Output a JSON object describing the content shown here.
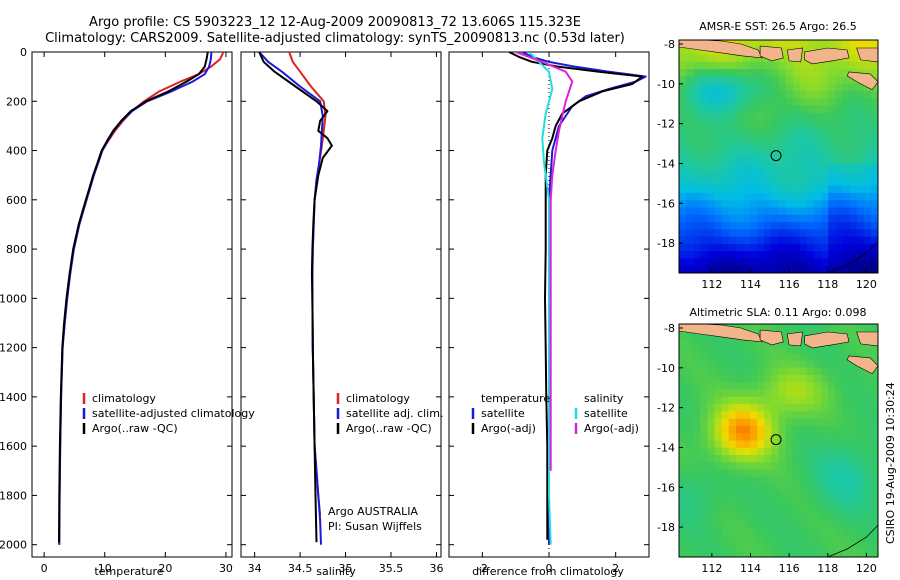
{
  "title": {
    "line1": "Argo profile: CS 5903223_12 12-Aug-2009 20090813_72 13.606S 115.323E",
    "line2": "Climatology: CARS2009. Satellite-adjusted climatology: synTS_20090813.nc (0.53d later)"
  },
  "colors": {
    "climatology": "#dd2222",
    "satellite": "#1a1ad8",
    "argo": "#000000",
    "sal_satellite": "#22dddd",
    "sal_argo": "#dd22dd",
    "land": "#f2b48a"
  },
  "watermark": "CSIRO 19-Aug-2009 10:30:24",
  "chart_data": [
    {
      "type": "line",
      "xlabel": "temperature",
      "ylabel": "",
      "xlim": [
        -2,
        31
      ],
      "ylim": [
        2050,
        0
      ],
      "xticks": [
        "0",
        "10",
        "20",
        "30"
      ],
      "yticks": [
        "0",
        "200",
        "400",
        "600",
        "800",
        "1000",
        "1200",
        "1400",
        "1600",
        "1800",
        "2000"
      ],
      "legend": [
        "climatology",
        "satellite-adjusted climatology",
        "Argo(..raw -QC)"
      ],
      "series": [
        {
          "name": "climatology",
          "color": "#dd2222",
          "x": [
            29.6,
            29,
            27.5,
            25.5,
            22.5,
            19,
            16.5,
            14.5,
            13,
            11.7,
            10.6,
            9.6,
            8.9,
            8.2,
            7.6,
            7,
            5.8,
            4.9,
            4.3,
            3.8,
            3.4,
            3.05,
            2.8,
            2.65,
            2.55,
            2.5
          ],
          "y": [
            0,
            30,
            60,
            90,
            120,
            160,
            200,
            240,
            280,
            320,
            360,
            400,
            450,
            500,
            550,
            600,
            700,
            800,
            900,
            1000,
            1100,
            1200,
            1400,
            1600,
            1800,
            2000
          ]
        },
        {
          "name": "satellite",
          "color": "#1a1ad8",
          "x": [
            27.6,
            27.5,
            27.2,
            26.5,
            24.5,
            21,
            17,
            14.5,
            12.8,
            11.5,
            10.5,
            9.6,
            8.9,
            8.2,
            7.6,
            7,
            5.8,
            4.9,
            4.3,
            3.8,
            3.4,
            3.05,
            2.8,
            2.65,
            2.55,
            2.5
          ],
          "y": [
            0,
            30,
            60,
            90,
            120,
            160,
            200,
            240,
            280,
            320,
            360,
            400,
            450,
            500,
            550,
            600,
            700,
            800,
            900,
            1000,
            1100,
            1200,
            1400,
            1600,
            1800,
            2000
          ]
        },
        {
          "name": "Argo",
          "color": "#000000",
          "x": [
            27,
            26.8,
            26.5,
            25.5,
            23.5,
            20.5,
            16.8,
            14.3,
            12.7,
            11.4,
            10.4,
            9.5,
            8.8,
            8.1,
            7.5,
            6.9,
            5.7,
            4.8,
            4.2,
            3.7,
            3.3,
            3,
            2.75,
            2.6,
            2.5,
            2.45
          ],
          "y": [
            0,
            30,
            60,
            90,
            120,
            160,
            200,
            240,
            280,
            320,
            360,
            400,
            450,
            500,
            550,
            600,
            700,
            800,
            900,
            1000,
            1100,
            1200,
            1400,
            1600,
            1800,
            1990
          ]
        }
      ]
    },
    {
      "type": "line",
      "xlabel": "salinity",
      "xlim": [
        33.85,
        36.05
      ],
      "ylim": [
        2050,
        0
      ],
      "xticks": [
        "34",
        "34.5",
        "35",
        "35.5",
        "36"
      ],
      "legend": [
        "climatology",
        "satellite adj. clim.",
        "Argo(..raw -QC)"
      ],
      "annotation": [
        "Argo AUSTRALIA",
        "PI: Susan Wijffels"
      ],
      "series": [
        {
          "name": "climatology",
          "color": "#dd2222",
          "x": [
            34.38,
            34.42,
            34.5,
            34.62,
            34.76,
            34.78,
            34.76,
            34.74,
            34.71,
            34.68,
            34.66,
            34.65,
            34.64,
            34.635,
            34.635,
            34.64,
            34.65,
            34.66,
            34.68,
            34.7,
            34.72
          ],
          "y": [
            0,
            40,
            80,
            140,
            200,
            260,
            320,
            380,
            450,
            520,
            600,
            700,
            800,
            900,
            1000,
            1200,
            1400,
            1600,
            1700,
            1800,
            1880
          ]
        },
        {
          "name": "satellite",
          "color": "#1a1ad8",
          "x": [
            34.05,
            34.15,
            34.3,
            34.5,
            34.72,
            34.75,
            34.74,
            34.73,
            34.71,
            34.68,
            34.66,
            34.65,
            34.64,
            34.635,
            34.635,
            34.64,
            34.65,
            34.66,
            34.68,
            34.7,
            34.72,
            34.73
          ],
          "y": [
            0,
            40,
            80,
            140,
            200,
            260,
            320,
            380,
            450,
            520,
            600,
            700,
            800,
            900,
            1000,
            1200,
            1400,
            1600,
            1700,
            1800,
            1900,
            2000
          ]
        },
        {
          "name": "Argo",
          "color": "#000000",
          "x": [
            34.05,
            34.1,
            34.22,
            34.45,
            34.68,
            34.8,
            34.72,
            34.7,
            34.8,
            34.85,
            34.75,
            34.7,
            34.66,
            34.645,
            34.635,
            34.63,
            34.635,
            34.64,
            34.65,
            34.66,
            34.67,
            34.68
          ],
          "y": [
            0,
            40,
            80,
            140,
            200,
            240,
            280,
            320,
            350,
            380,
            430,
            500,
            600,
            700,
            800,
            900,
            1000,
            1200,
            1400,
            1600,
            1800,
            1990
          ]
        }
      ]
    },
    {
      "type": "line",
      "xlabel": "difference from climatology",
      "xlim": [
        -3,
        3
      ],
      "ylim": [
        2050,
        0
      ],
      "xticks": [
        "-2",
        "0",
        "2"
      ],
      "legend_temperature": [
        "temperature",
        "satellite",
        "Argo(-adj)"
      ],
      "legend_salinity": [
        "salinity",
        "satellite",
        "Argo(-adj)"
      ],
      "series": [
        {
          "name": "temperature satellite",
          "color": "#1a1ad8",
          "x": [
            -0.8,
            -0.5,
            0,
            0.8,
            1.8,
            2.9,
            2.6,
            1.8,
            1.1,
            0.7,
            0.5,
            0.3,
            0.1,
            0.05,
            0,
            0,
            0,
            0,
            0,
            0
          ],
          "y": [
            0,
            20,
            40,
            60,
            80,
            100,
            120,
            150,
            180,
            220,
            260,
            300,
            400,
            500,
            600,
            800,
            1000,
            1400,
            1800,
            2000
          ]
        },
        {
          "name": "temperature Argo",
          "color": "#000000",
          "x": [
            -1.2,
            -0.9,
            -0.5,
            0.3,
            1.5,
            2.8,
            2.5,
            1.6,
            0.9,
            0.4,
            0.2,
            0.1,
            -0.05,
            -0.1,
            -0.1,
            -0.1,
            -0.12,
            -0.1,
            -0.08,
            -0.05,
            -0.05,
            -0.05
          ],
          "y": [
            0,
            20,
            40,
            60,
            80,
            100,
            130,
            160,
            200,
            250,
            300,
            350,
            400,
            500,
            600,
            800,
            1000,
            1200,
            1400,
            1600,
            1800,
            1980
          ]
        },
        {
          "name": "salinity satellite",
          "color": "#22dddd",
          "x": [
            -0.6,
            -0.3,
            0,
            0.1,
            -0.1,
            -0.2,
            -0.15,
            -0.1,
            0,
            0,
            0,
            0,
            0,
            0.05
          ],
          "y": [
            0,
            40,
            80,
            150,
            250,
            350,
            450,
            500,
            600,
            800,
            1000,
            1400,
            1800,
            2000
          ]
        },
        {
          "name": "salinity Argo",
          "color": "#dd22dd",
          "x": [
            -1,
            -0.6,
            -0.2,
            0.5,
            0.7,
            0.6,
            0.5,
            0.4,
            0.3,
            0.2,
            0.1,
            0.05,
            0.05,
            0.05,
            0.05,
            0.05
          ],
          "y": [
            0,
            20,
            40,
            80,
            120,
            160,
            200,
            260,
            320,
            400,
            500,
            600,
            800,
            1000,
            1400,
            1700
          ]
        }
      ]
    },
    {
      "type": "heatmap",
      "title": "AMSR-E SST: 26.5 Argo: 26.5",
      "xlim": [
        110.3,
        120.6
      ],
      "ylim": [
        -19.5,
        -7.8
      ],
      "xticks": [
        "112",
        "114",
        "116",
        "118",
        "120"
      ],
      "yticks": [
        "-8",
        "-10",
        "-12",
        "-14",
        "-16",
        "-18"
      ],
      "marker": {
        "lon": 115.323,
        "lat": -13.606
      }
    },
    {
      "type": "heatmap",
      "title": "Altimetric SLA: 0.11 Argo: 0.098",
      "xlim": [
        110.3,
        120.6
      ],
      "ylim": [
        -19.5,
        -7.8
      ],
      "xticks": [
        "112",
        "114",
        "116",
        "118",
        "120"
      ],
      "yticks": [
        "-8",
        "-10",
        "-12",
        "-14",
        "-16",
        "-18"
      ],
      "marker": {
        "lon": 115.323,
        "lat": -13.606
      }
    }
  ]
}
